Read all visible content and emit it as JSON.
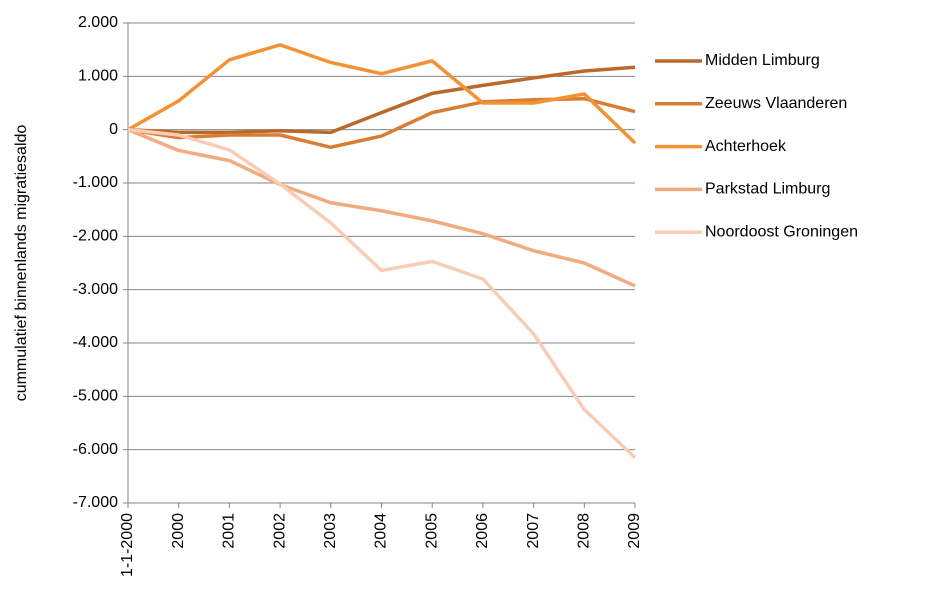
{
  "chart_data": {
    "type": "line",
    "y_label": "cummulatief binnenlands migratiesaldo",
    "categories": [
      "1-1-2000",
      "2000",
      "2001",
      "2002",
      "2003",
      "2004",
      "2005",
      "2006",
      "2007",
      "2008",
      "2009"
    ],
    "series": [
      {
        "name": "Midden Limburg",
        "color": "#b9692b",
        "values": [
          0,
          -50,
          -50,
          -20,
          -50,
          320,
          680,
          830,
          970,
          1100,
          1170
        ]
      },
      {
        "name": "Zeeuws Vlaanderen",
        "color": "#d97d35",
        "values": [
          0,
          -150,
          -100,
          -100,
          -330,
          -120,
          320,
          520,
          560,
          580,
          340
        ]
      },
      {
        "name": "Achterhoek",
        "color": "#f39234",
        "values": [
          0,
          540,
          1310,
          1590,
          1260,
          1050,
          1290,
          500,
          500,
          670,
          -250
        ]
      },
      {
        "name": "Parkstad Limburg",
        "color": "#f2aa80",
        "values": [
          0,
          -390,
          -580,
          -1030,
          -1370,
          -1520,
          -1710,
          -1950,
          -2270,
          -2500,
          -2930
        ]
      },
      {
        "name": "Noordoost Groningen",
        "color": "#f8cdb5",
        "values": [
          0,
          -100,
          -380,
          -1020,
          -1750,
          -2640,
          -2470,
          -2800,
          -3830,
          -5250,
          -6150
        ]
      }
    ],
    "ylim": [
      -7000,
      2000
    ],
    "yticks": [
      {
        "value": -7000,
        "label": "-7.000"
      },
      {
        "value": -6000,
        "label": "-6.000"
      },
      {
        "value": -5000,
        "label": "-5.000"
      },
      {
        "value": -4000,
        "label": "-4.000"
      },
      {
        "value": -3000,
        "label": "-3.000"
      },
      {
        "value": -2000,
        "label": "-2.000"
      },
      {
        "value": -1000,
        "label": "-1.000"
      },
      0,
      {
        "value": 1000,
        "label": "1.000"
      },
      {
        "value": 2000,
        "label": "2.000"
      }
    ],
    "grid": true,
    "legend": "right"
  }
}
